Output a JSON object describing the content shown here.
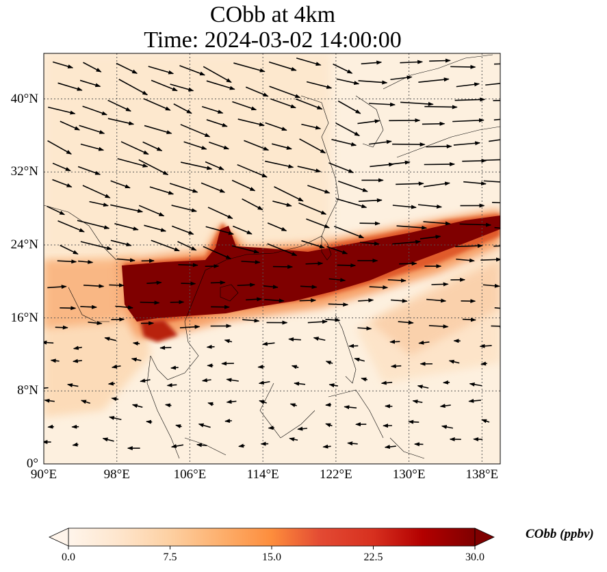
{
  "title": "CObb at 4km",
  "subtitle": "Time: 2024-03-02 14:00:00",
  "map": {
    "lon_range": [
      90,
      140
    ],
    "lat_range": [
      0,
      45
    ],
    "lat_ticks": [
      {
        "value": 0,
        "label": "0°"
      },
      {
        "value": 8,
        "label": "8°N"
      },
      {
        "value": 16,
        "label": "16°N"
      },
      {
        "value": 24,
        "label": "24°N"
      },
      {
        "value": 32,
        "label": "32°N"
      },
      {
        "value": 40,
        "label": "40°N"
      }
    ],
    "lon_ticks": [
      {
        "value": 90,
        "label": "90°E"
      },
      {
        "value": 98,
        "label": "98°E"
      },
      {
        "value": 106,
        "label": "106°E"
      },
      {
        "value": 114,
        "label": "114°E"
      },
      {
        "value": 122,
        "label": "122°E"
      },
      {
        "value": 130,
        "label": "130°E"
      },
      {
        "value": 138,
        "label": "138°E"
      }
    ],
    "gridlines": "dotted"
  },
  "colorbar": {
    "label": "CObb (ppbv)",
    "min": 0,
    "max": 30,
    "ticks": [
      "0.0",
      "7.5",
      "15.0",
      "22.5",
      "30.0"
    ],
    "colormap": [
      "#fff5eb",
      "#fee6ce",
      "#fdd0a2",
      "#fdae6b",
      "#fd8d3c",
      "#f16913",
      "#d94801",
      "#a63603",
      "#7f2704",
      "#7f0000"
    ],
    "extend": "both"
  },
  "chart_data": {
    "type": "heatmap",
    "variable": "CObb",
    "units": "ppbv",
    "level": "4km",
    "time": "2024-03-02 14:00:00",
    "plume_max_ppbv": 30,
    "plume_core_lat_range": [
      17,
      22
    ],
    "plume_core_lon_range": [
      98,
      140
    ],
    "wind_flow": "westerly, strongest north of 24°N"
  }
}
